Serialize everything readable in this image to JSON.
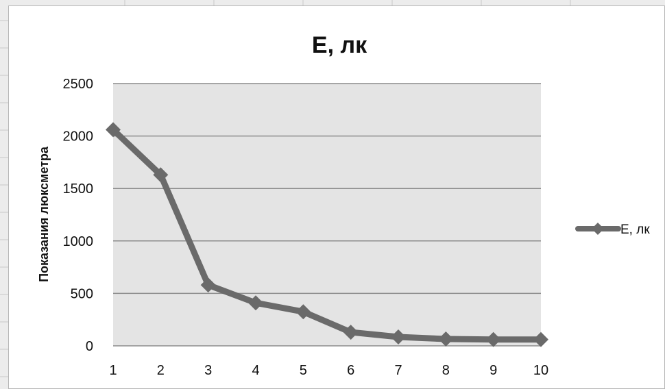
{
  "chart_data": {
    "type": "line",
    "title": "E, лк",
    "xlabel": "",
    "ylabel": "Показания люксметра",
    "categories": [
      "1",
      "2",
      "3",
      "4",
      "5",
      "6",
      "7",
      "8",
      "9",
      "10"
    ],
    "series": [
      {
        "name": "E, лк",
        "values": [
          2060,
          1630,
          580,
          410,
          325,
          130,
          85,
          65,
          60,
          60
        ]
      }
    ],
    "ylim": [
      0,
      2500
    ],
    "yticks": [
      "0",
      "500",
      "1000",
      "1500",
      "2000",
      "2500"
    ],
    "grid": true,
    "legend": "right",
    "colors": {
      "line": "#6a6a6a",
      "plot_area": "#e4e4e4",
      "gridline": "#8c8c8c"
    }
  }
}
